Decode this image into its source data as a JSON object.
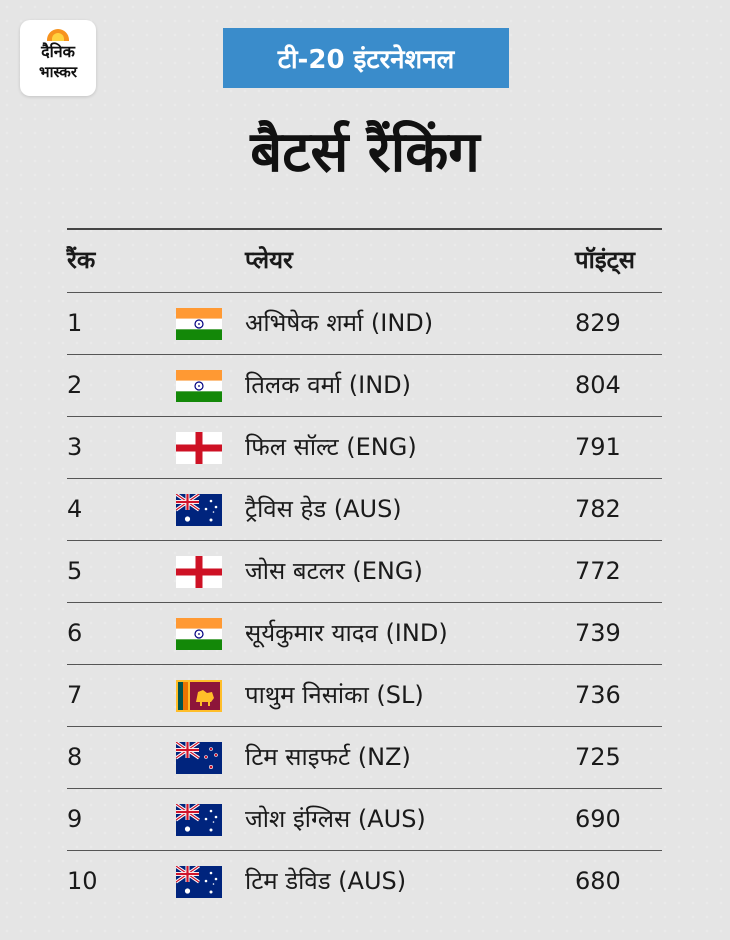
{
  "logo": {
    "line1": "दैनिक",
    "line2": "भास्कर"
  },
  "badge": "टी-20 इंटरनेशनल",
  "title": "बैटर्स रैंकिंग",
  "table": {
    "headers": {
      "rank": "रैंक",
      "player": "प्लेयर",
      "points": "पॉइंट्स"
    },
    "rows": [
      {
        "rank": "1",
        "flag": "india-flag-icon",
        "player": "अभिषेक शर्मा (IND)",
        "points": "829"
      },
      {
        "rank": "2",
        "flag": "india-flag-icon",
        "player": "तिलक वर्मा (IND)",
        "points": "804"
      },
      {
        "rank": "3",
        "flag": "england-flag-icon",
        "player": "फिल सॉल्ट (ENG)",
        "points": "791"
      },
      {
        "rank": "4",
        "flag": "australia-flag-icon",
        "player": "ट्रैविस हेड (AUS)",
        "points": "782"
      },
      {
        "rank": "5",
        "flag": "england-flag-icon",
        "player": "जोस बटलर (ENG)",
        "points": "772"
      },
      {
        "rank": "6",
        "flag": "india-flag-icon",
        "player": "सूर्यकुमार यादव (IND)",
        "points": "739"
      },
      {
        "rank": "7",
        "flag": "sri-lanka-flag-icon",
        "player": "पाथुम निसांका (SL)",
        "points": "736"
      },
      {
        "rank": "8",
        "flag": "new-zealand-flag-icon",
        "player": "टिम साइफर्ट (NZ)",
        "points": "725"
      },
      {
        "rank": "9",
        "flag": "australia-flag-icon",
        "player": "जोश इंग्लिस (AUS)",
        "points": "690"
      },
      {
        "rank": "10",
        "flag": "australia-flag-icon",
        "player": "टिम डेविड (AUS)",
        "points": "680"
      }
    ]
  },
  "colors": {
    "badge": "#3a8ccb",
    "background": "#e5e5e5"
  }
}
